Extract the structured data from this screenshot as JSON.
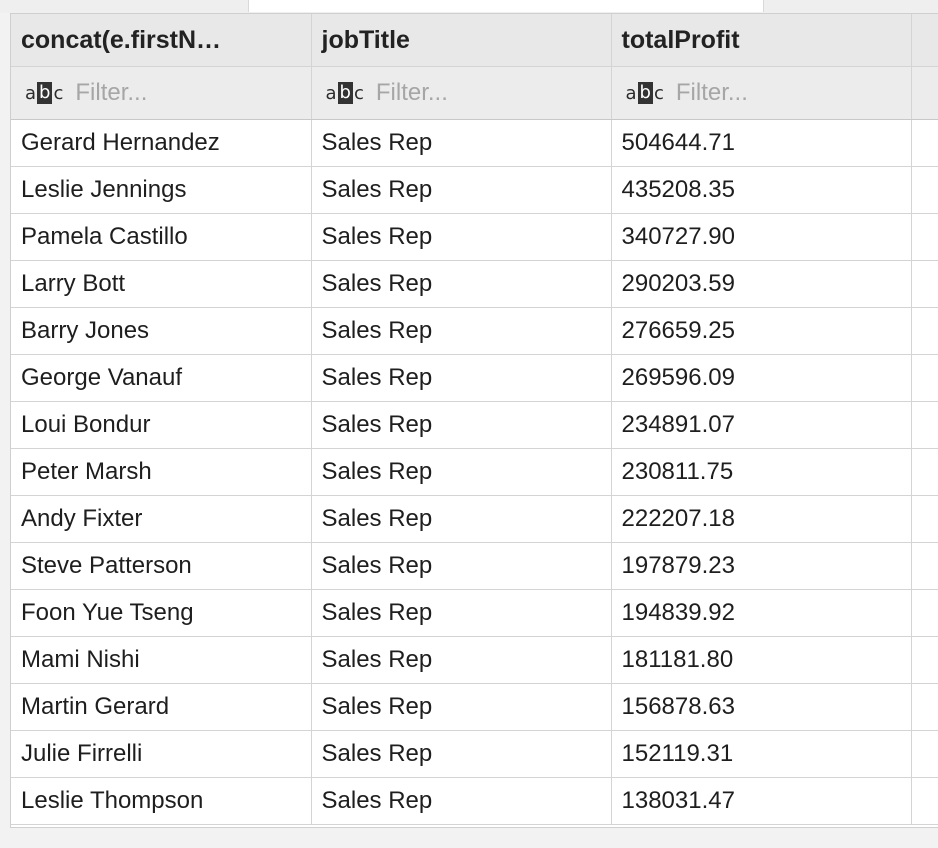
{
  "columns": [
    {
      "label": "concat(e.firstN…",
      "filter_placeholder": "Filter...",
      "filter_icon": "text-type-abc-icon"
    },
    {
      "label": "jobTitle",
      "filter_placeholder": "Filter...",
      "filter_icon": "text-type-abc-icon"
    },
    {
      "label": "totalProfit",
      "filter_placeholder": "Filter...",
      "filter_icon": "text-type-abc-icon"
    }
  ],
  "rows": [
    [
      "Gerard Hernandez",
      "Sales Rep",
      "504644.71"
    ],
    [
      "Leslie Jennings",
      "Sales Rep",
      "435208.35"
    ],
    [
      "Pamela Castillo",
      "Sales Rep",
      "340727.90"
    ],
    [
      "Larry Bott",
      "Sales Rep",
      "290203.59"
    ],
    [
      "Barry Jones",
      "Sales Rep",
      "276659.25"
    ],
    [
      "George Vanauf",
      "Sales Rep",
      "269596.09"
    ],
    [
      "Loui Bondur",
      "Sales Rep",
      "234891.07"
    ],
    [
      "Peter Marsh",
      "Sales Rep",
      "230811.75"
    ],
    [
      "Andy Fixter",
      "Sales Rep",
      "222207.18"
    ],
    [
      "Steve Patterson",
      "Sales Rep",
      "197879.23"
    ],
    [
      "Foon Yue Tseng",
      "Sales Rep",
      "194839.92"
    ],
    [
      "Mami Nishi",
      "Sales Rep",
      "181181.80"
    ],
    [
      "Martin Gerard",
      "Sales Rep",
      "156878.63"
    ],
    [
      "Julie Firrelli",
      "Sales Rep",
      "152119.31"
    ],
    [
      "Leslie Thompson",
      "Sales Rep",
      "138031.47"
    ]
  ],
  "colors": {
    "header_bg": "#e8e8e8",
    "grid_line": "#d4d4d4",
    "placeholder": "#a6a6a6"
  }
}
